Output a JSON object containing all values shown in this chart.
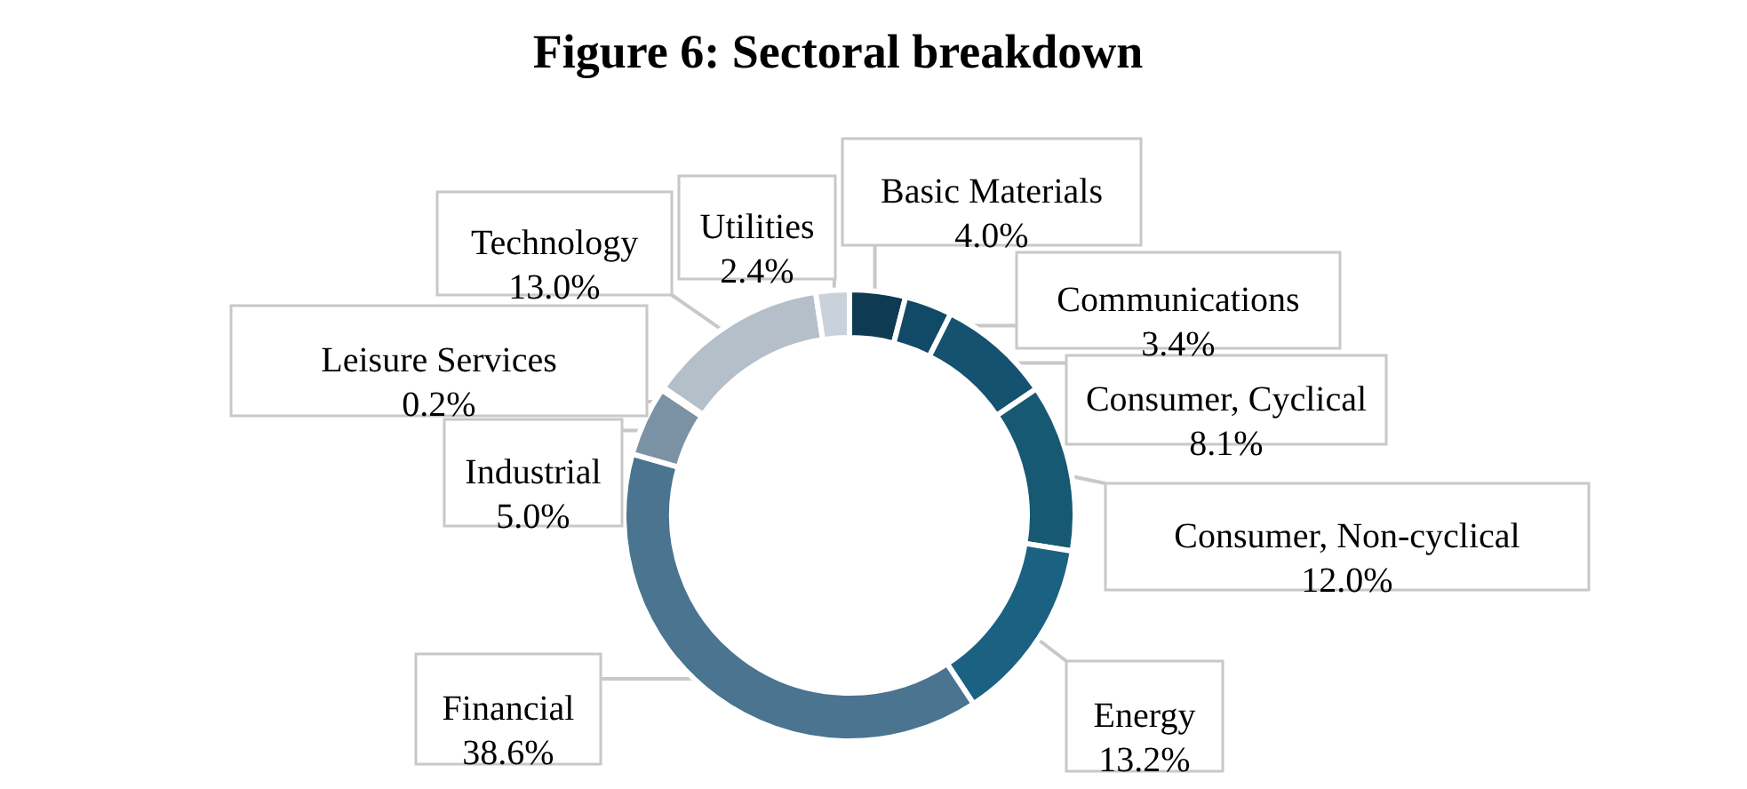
{
  "chart_data": {
    "type": "donut",
    "title": "Figure 6: Sectoral breakdown",
    "categories": [
      "Basic Materials",
      "Communications",
      "Consumer, Cyclical",
      "Consumer, Non-cyclical",
      "Energy",
      "Financial",
      "Industrial",
      "Leisure Services",
      "Technology",
      "Utilities"
    ],
    "values": [
      4.0,
      3.4,
      8.1,
      12.0,
      13.2,
      38.6,
      5.0,
      0.2,
      13.0,
      2.4
    ],
    "colors": [
      "#0e3b52",
      "#114a66",
      "#15526f",
      "#175873",
      "#1b6182",
      "#4a748f",
      "#7b91a4",
      "#8ea0b1",
      "#b4bfca",
      "#c9d1da"
    ],
    "value_labels": [
      "4.0%",
      "3.4%",
      "8.1%",
      "12.0%",
      "13.2%",
      "38.6%",
      "5.0%",
      "0.2%",
      "13.0%",
      "2.4%"
    ]
  }
}
